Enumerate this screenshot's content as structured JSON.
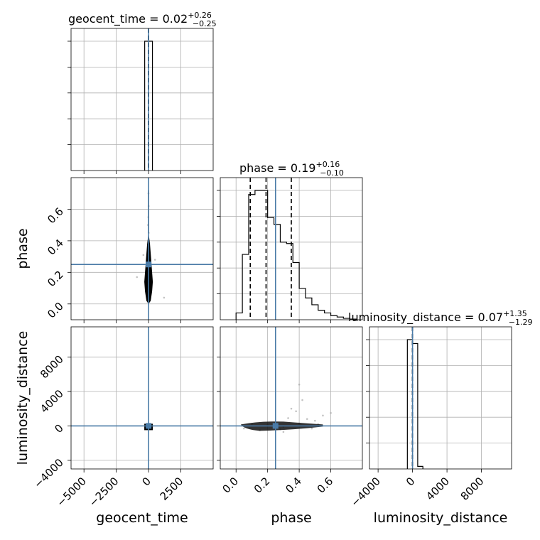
{
  "chart_data": {
    "type": "corner",
    "parameters": [
      "geocent_time",
      "phase",
      "luminosity_distance"
    ],
    "truths": {
      "geocent_time": 0,
      "phase": 0.25,
      "luminosity_distance": 0
    },
    "ranges": {
      "geocent_time": [
        -6000,
        5000
      ],
      "phase": [
        -0.1,
        0.8
      ],
      "luminosity_distance": [
        -5000,
        11500
      ]
    },
    "ticks": {
      "geocent_time": {
        "values": [
          -5000,
          -2500,
          0,
          2500
        ],
        "labels": [
          "−5000",
          "−2500",
          "0",
          "2500"
        ]
      },
      "phase": {
        "values": [
          0.0,
          0.2,
          0.4,
          0.6
        ],
        "labels": [
          "0.0",
          "0.2",
          "0.4",
          "0.6"
        ]
      },
      "luminosity_distance": {
        "values": [
          -4000,
          0,
          4000,
          8000
        ],
        "labels": [
          "−4000",
          "0",
          "4000",
          "8000"
        ]
      }
    },
    "titles": {
      "geocent_time": {
        "name": "geocent_time",
        "median": "0.02",
        "plus": "+0.26",
        "minus": "−0.25"
      },
      "phase": {
        "name": "phase",
        "median": "0.19",
        "plus": "+0.16",
        "minus": "−0.10"
      },
      "luminosity_distance": {
        "name": "luminosity_distance",
        "median": "0.07",
        "plus": "+1.35",
        "minus": "−1.29"
      }
    },
    "histograms": {
      "geocent_time": {
        "bin_edges": [
          -300,
          300
        ],
        "counts": [
          1.0
        ],
        "quantiles": [
          -0.23,
          0.02,
          0.28
        ]
      },
      "phase": {
        "bin_edges": [
          0.0,
          0.04,
          0.08,
          0.12,
          0.16,
          0.2,
          0.24,
          0.28,
          0.32,
          0.36,
          0.4,
          0.44,
          0.48,
          0.52,
          0.56,
          0.6,
          0.64,
          0.68,
          0.72,
          0.76
        ],
        "counts": [
          0.05,
          0.48,
          0.92,
          0.95,
          0.95,
          0.75,
          0.7,
          0.57,
          0.56,
          0.42,
          0.23,
          0.16,
          0.11,
          0.07,
          0.05,
          0.03,
          0.02,
          0.01,
          0.005
        ],
        "quantiles": [
          0.09,
          0.19,
          0.35
        ]
      },
      "luminosity_distance": {
        "bin_edges": [
          -600,
          0,
          600,
          1200
        ],
        "counts": [
          1.0,
          0.97,
          0.02
        ],
        "quantiles": [
          -1.22,
          0.07,
          1.42
        ]
      }
    },
    "scatter": {
      "phase_vs_geocent_time": [
        [
          0,
          0.12
        ],
        [
          -30,
          0.2
        ],
        [
          25,
          0.3
        ],
        [
          -50,
          0.05
        ],
        [
          40,
          0.08
        ],
        [
          10,
          0.45
        ],
        [
          -15,
          0.55
        ],
        [
          60,
          0.35
        ],
        [
          -80,
          0.22
        ],
        [
          90,
          0.15
        ],
        [
          5,
          0.62
        ],
        [
          -5,
          0.7
        ],
        [
          -400,
          0.31
        ],
        [
          500,
          0.28
        ],
        [
          1200,
          0.04
        ],
        [
          -900,
          0.17
        ],
        [
          30,
          0.4
        ],
        [
          -40,
          0.5
        ],
        [
          15,
          0.25
        ],
        [
          -10,
          0.02
        ]
      ],
      "luminosity_distance_vs_phase": [
        [
          0.05,
          -300
        ],
        [
          0.1,
          200
        ],
        [
          0.2,
          100
        ],
        [
          0.3,
          -100
        ],
        [
          0.4,
          300
        ],
        [
          0.45,
          800
        ],
        [
          0.5,
          600
        ],
        [
          0.55,
          1200
        ],
        [
          0.35,
          2000
        ],
        [
          0.4,
          4800
        ],
        [
          0.3,
          -700
        ],
        [
          0.25,
          400
        ],
        [
          0.15,
          -500
        ],
        [
          0.6,
          1500
        ],
        [
          0.42,
          3000
        ],
        [
          0.38,
          1700
        ],
        [
          0.48,
          -300
        ],
        [
          0.33,
          900
        ],
        [
          0.52,
          200
        ],
        [
          0.28,
          -400
        ]
      ]
    }
  }
}
